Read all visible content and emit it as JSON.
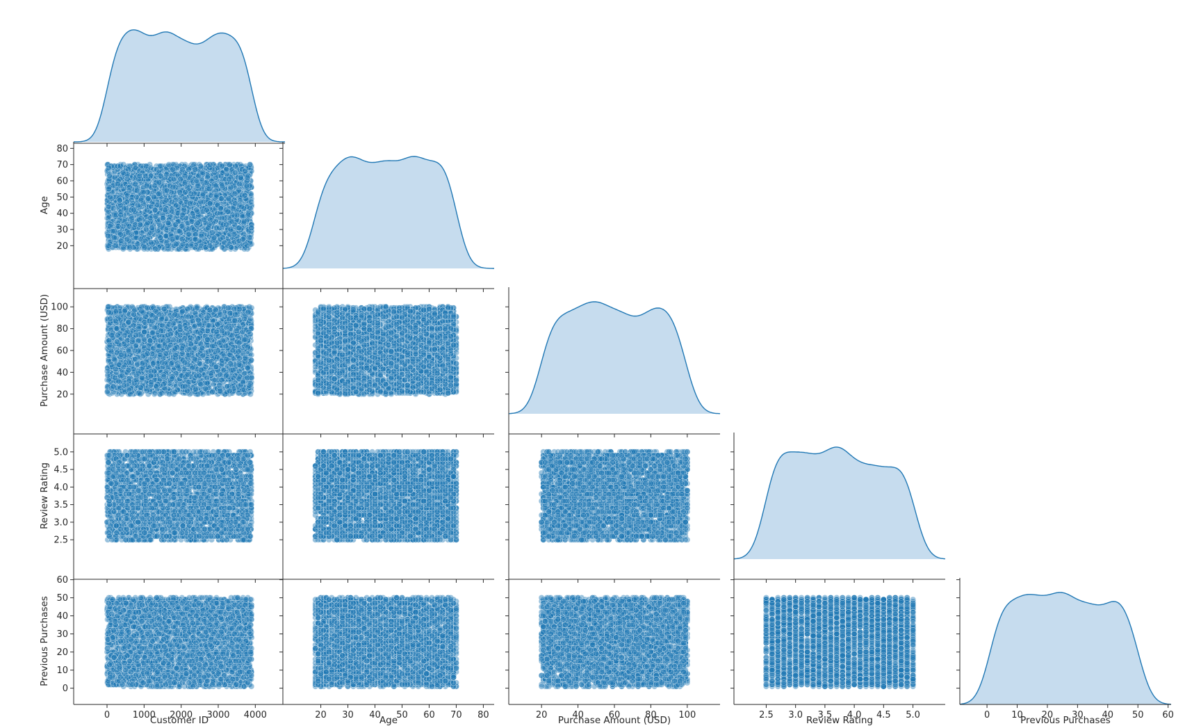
{
  "chart_data": {
    "type": "scatter",
    "title": "",
    "description_of_kind": "pairplot",
    "variables": [
      "Customer ID",
      "Age",
      "Purchase Amount (USD)",
      "Review Rating",
      "Previous Purchases"
    ],
    "axes": {
      "Customer ID": {
        "range": [
          -900,
          4800
        ],
        "ticks": [
          0,
          1000,
          2000,
          3000,
          4000
        ],
        "tick_labels": [
          "0",
          "1000",
          "2000",
          "3000",
          "4000"
        ]
      },
      "Age": {
        "range": [
          6,
          84
        ],
        "ticks": [
          20,
          30,
          40,
          50,
          60,
          70,
          80
        ],
        "tick_labels": [
          "20",
          "30",
          "40",
          "50",
          "60",
          "70",
          "80"
        ]
      },
      "Purchase Amount (USD)": {
        "range": [
          2,
          118
        ],
        "ticks": [
          20,
          40,
          60,
          80,
          100
        ],
        "tick_labels": [
          "20",
          "40",
          "60",
          "80",
          "100"
        ]
      },
      "Review Rating": {
        "range": [
          1.95,
          5.55
        ],
        "ticks": [
          2.5,
          3.0,
          3.5,
          4.0,
          4.5,
          5.0
        ],
        "tick_labels": [
          "2.5",
          "3.0",
          "3.5",
          "4.0",
          "4.5",
          "5.0"
        ]
      },
      "Previous Purchases": {
        "range": [
          -9,
          61
        ],
        "ticks": [
          0,
          10,
          20,
          30,
          40,
          50,
          60
        ],
        "tick_labels": [
          "0",
          "10",
          "20",
          "30",
          "40",
          "50",
          "60"
        ]
      }
    },
    "data_extent": {
      "Customer ID": [
        1,
        3900
      ],
      "Age": [
        18,
        70
      ],
      "Purchase Amount (USD)": [
        20,
        100
      ],
      "Review Rating": [
        2.5,
        5.0
      ],
      "Previous Purchases": [
        1,
        50
      ]
    },
    "discrete_step": {
      "Customer ID": 0,
      "Age": 1,
      "Purchase Amount (USD)": 1,
      "Review Rating": 0.1,
      "Previous Purchases": 1
    },
    "diagonal": "kde",
    "off_diagonal": "scatter",
    "corner": true,
    "point_alpha": 0.6,
    "point_count_per_panel": 3900,
    "grid": false,
    "legend": "none",
    "colors": {
      "marker": "#1f77b4",
      "kde_fill": "#c6dcee",
      "kde_line": "#1f77b4",
      "axis": "#262626"
    }
  }
}
